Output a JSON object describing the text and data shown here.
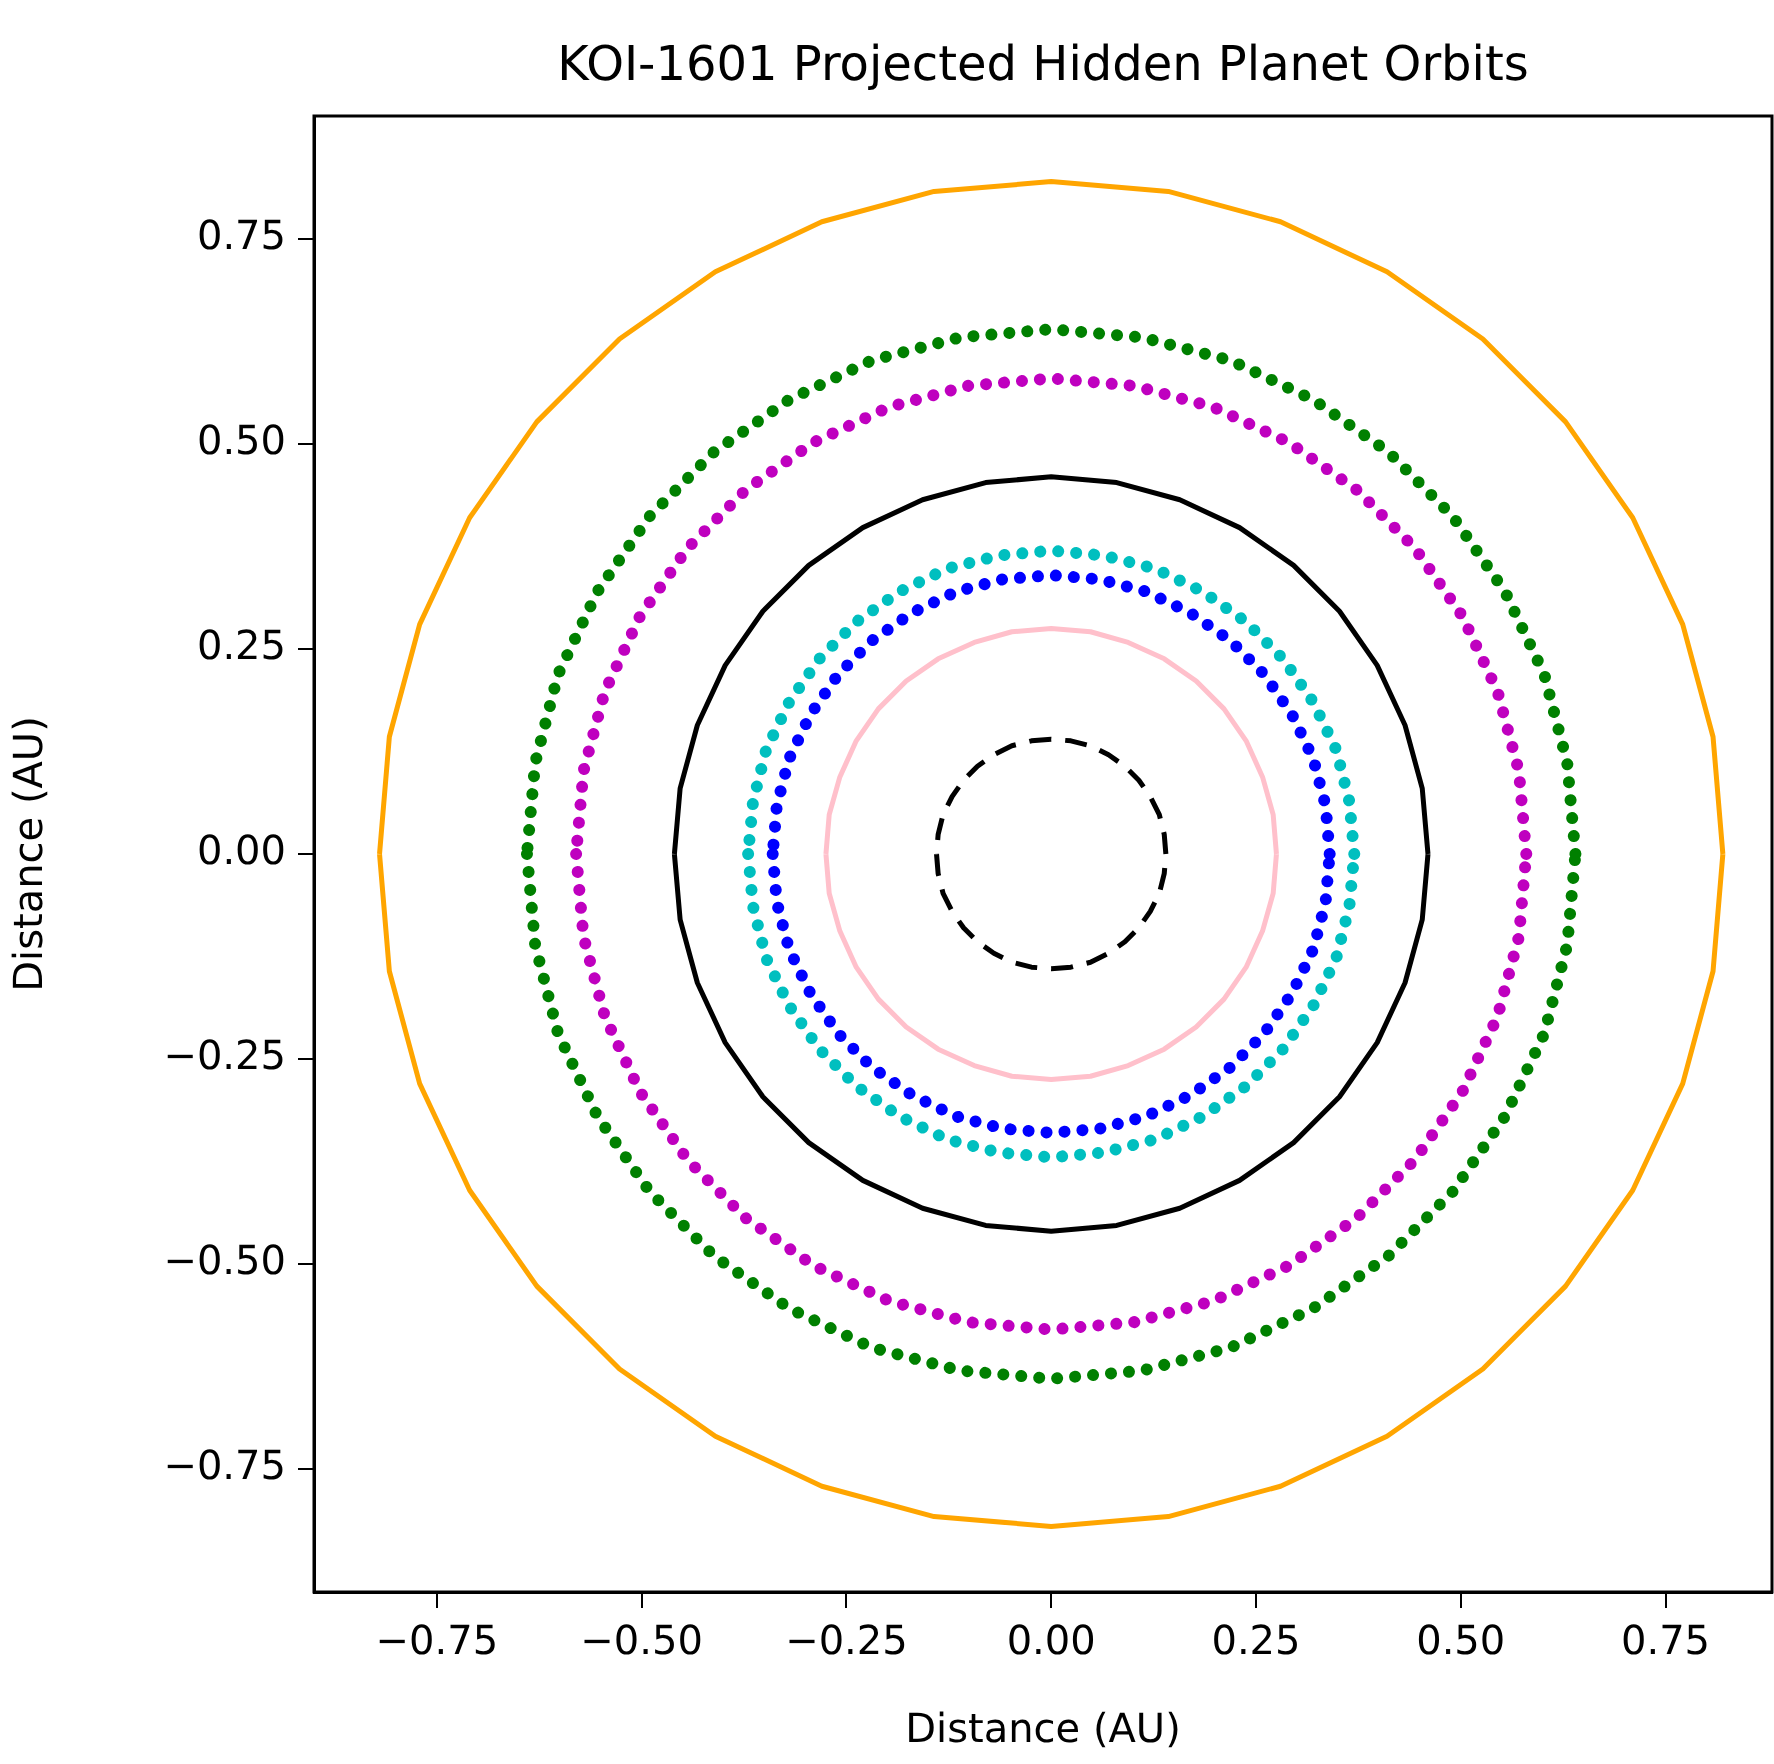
{
  "chart_data": {
    "type": "line",
    "title": "KOI-1601 Projected Hidden Planet Orbits",
    "xlabel": "Distance (AU)",
    "ylabel": "Distance (AU)",
    "xlim": [
      -0.9,
      0.88
    ],
    "ylim": [
      -0.9,
      0.9
    ],
    "xticks": [
      {
        "value": -0.75,
        "label": "−0.75"
      },
      {
        "value": -0.5,
        "label": "−0.50"
      },
      {
        "value": -0.25,
        "label": "−0.25"
      },
      {
        "value": 0,
        "label": "0.00"
      },
      {
        "value": 0.25,
        "label": "0.25"
      },
      {
        "value": 0.5,
        "label": "0.50"
      },
      {
        "value": 0.75,
        "label": "0.75"
      }
    ],
    "yticks": [
      {
        "value": -0.75,
        "label": "−0.75"
      },
      {
        "value": -0.5,
        "label": "−0.50"
      },
      {
        "value": -0.25,
        "label": "−0.25"
      },
      {
        "value": 0,
        "label": "0.00"
      },
      {
        "value": 0.25,
        "label": "0.25"
      },
      {
        "value": 0.5,
        "label": "0.50"
      },
      {
        "value": 0.75,
        "label": "0.75"
      }
    ],
    "grid": false,
    "legend": false,
    "series": [
      {
        "color": "#ffa500",
        "line_style": "solid",
        "x": [
          0.82,
          0.808,
          0.771,
          0.71,
          0.628,
          0.527,
          0.41,
          0.28,
          0.143,
          0,
          -0.143,
          -0.28,
          -0.41,
          -0.527,
          -0.628,
          -0.71,
          -0.771,
          -0.808,
          -0.82,
          null,
          -0.82,
          -0.808,
          -0.771,
          -0.71,
          -0.628,
          -0.527,
          -0.41,
          -0.28,
          -0.143,
          0,
          0.143,
          0.28,
          0.41,
          0.527,
          0.628,
          0.71,
          0.771,
          0.808,
          0.82
        ],
        "values": [
          0,
          0.143,
          0.28,
          0.41,
          0.527,
          0.628,
          0.71,
          0.771,
          0.808,
          0.82,
          0.808,
          0.771,
          0.71,
          0.628,
          0.527,
          0.41,
          0.28,
          0.143,
          0,
          null,
          0,
          -0.143,
          -0.28,
          -0.41,
          -0.527,
          -0.628,
          -0.71,
          -0.771,
          -0.808,
          -0.82,
          -0.808,
          -0.771,
          -0.71,
          -0.628,
          -0.527,
          -0.41,
          -0.28,
          -0.143,
          0
        ]
      },
      {
        "color": "#008000",
        "line_style": "dotted",
        "x": [
          0.64,
          0.63,
          0.602,
          0.554,
          0.49,
          0.412,
          0.32,
          0.219,
          0.111,
          0,
          -0.111,
          -0.219,
          -0.32,
          -0.412,
          -0.49,
          -0.554,
          -0.602,
          -0.63,
          -0.64,
          null,
          -0.64,
          -0.63,
          -0.602,
          -0.554,
          -0.49,
          -0.412,
          -0.32,
          -0.219,
          -0.111,
          0,
          0.111,
          0.219,
          0.32,
          0.412,
          0.49,
          0.554,
          0.602,
          0.63,
          0.64
        ],
        "values": [
          0,
          0.111,
          0.219,
          0.32,
          0.412,
          0.49,
          0.554,
          0.602,
          0.63,
          0.64,
          0.63,
          0.602,
          0.554,
          0.49,
          0.412,
          0.32,
          0.219,
          0.111,
          0,
          null,
          0,
          -0.111,
          -0.219,
          -0.32,
          -0.412,
          -0.49,
          -0.554,
          -0.602,
          -0.63,
          -0.64,
          -0.63,
          -0.602,
          -0.554,
          -0.49,
          -0.412,
          -0.32,
          -0.219,
          -0.111,
          0
        ]
      },
      {
        "color": "#bf00bf",
        "line_style": "dotted",
        "x": [
          0.58,
          0.571,
          0.545,
          0.502,
          0.444,
          0.373,
          0.29,
          0.198,
          0.101,
          0,
          -0.101,
          -0.198,
          -0.29,
          -0.373,
          -0.444,
          -0.502,
          -0.545,
          -0.571,
          -0.58,
          null,
          -0.58,
          -0.571,
          -0.545,
          -0.502,
          -0.444,
          -0.373,
          -0.29,
          -0.198,
          -0.101,
          0,
          0.101,
          0.198,
          0.29,
          0.373,
          0.444,
          0.502,
          0.545,
          0.571,
          0.58
        ],
        "values": [
          0,
          0.101,
          0.198,
          0.29,
          0.373,
          0.444,
          0.502,
          0.545,
          0.571,
          0.58,
          0.571,
          0.545,
          0.502,
          0.444,
          0.373,
          0.29,
          0.198,
          0.101,
          0,
          null,
          0,
          -0.101,
          -0.198,
          -0.29,
          -0.373,
          -0.444,
          -0.502,
          -0.545,
          -0.571,
          -0.58,
          -0.571,
          -0.545,
          -0.502,
          -0.444,
          -0.373,
          -0.29,
          -0.198,
          -0.101,
          0
        ]
      },
      {
        "color": "#000000",
        "line_style": "solid",
        "x": [
          0.46,
          0.453,
          0.432,
          0.398,
          0.352,
          0.296,
          0.23,
          0.157,
          0.08,
          0,
          -0.08,
          -0.157,
          -0.23,
          -0.296,
          -0.352,
          -0.398,
          -0.432,
          -0.453,
          -0.46,
          null,
          -0.46,
          -0.453,
          -0.432,
          -0.398,
          -0.352,
          -0.296,
          -0.23,
          -0.157,
          -0.08,
          0,
          0.08,
          0.157,
          0.23,
          0.296,
          0.352,
          0.398,
          0.432,
          0.453,
          0.46
        ],
        "values": [
          0,
          0.08,
          0.157,
          0.23,
          0.296,
          0.352,
          0.398,
          0.432,
          0.453,
          0.46,
          0.453,
          0.432,
          0.398,
          0.352,
          0.296,
          0.23,
          0.157,
          0.08,
          0,
          null,
          0,
          -0.08,
          -0.157,
          -0.23,
          -0.296,
          -0.352,
          -0.398,
          -0.432,
          -0.453,
          -0.46,
          -0.453,
          -0.432,
          -0.398,
          -0.352,
          -0.296,
          -0.23,
          -0.157,
          -0.08,
          0
        ]
      },
      {
        "color": "#00bfbf",
        "line_style": "dotted",
        "x": [
          0.37,
          0.364,
          0.348,
          0.32,
          0.283,
          0.238,
          0.185,
          0.127,
          0.064,
          0,
          -0.064,
          -0.127,
          -0.185,
          -0.238,
          -0.283,
          -0.32,
          -0.348,
          -0.364,
          -0.37,
          null,
          -0.37,
          -0.364,
          -0.348,
          -0.32,
          -0.283,
          -0.238,
          -0.185,
          -0.127,
          -0.064,
          0,
          0.064,
          0.127,
          0.185,
          0.238,
          0.283,
          0.32,
          0.348,
          0.364,
          0.37
        ],
        "values": [
          0,
          0.064,
          0.127,
          0.185,
          0.238,
          0.283,
          0.32,
          0.348,
          0.364,
          0.37,
          0.364,
          0.348,
          0.32,
          0.283,
          0.238,
          0.185,
          0.127,
          0.064,
          0,
          null,
          0,
          -0.064,
          -0.127,
          -0.185,
          -0.238,
          -0.283,
          -0.32,
          -0.348,
          -0.364,
          -0.37,
          -0.364,
          -0.348,
          -0.32,
          -0.283,
          -0.238,
          -0.185,
          -0.127,
          -0.064,
          0
        ]
      },
      {
        "color": "#0000ff",
        "line_style": "dotted",
        "x": [
          0.34,
          0.335,
          0.32,
          0.294,
          0.26,
          0.219,
          0.17,
          0.116,
          0.059,
          0,
          -0.059,
          -0.116,
          -0.17,
          -0.219,
          -0.26,
          -0.294,
          -0.32,
          -0.335,
          -0.34,
          null,
          -0.34,
          -0.335,
          -0.32,
          -0.294,
          -0.26,
          -0.219,
          -0.17,
          -0.116,
          -0.059,
          0,
          0.059,
          0.116,
          0.17,
          0.219,
          0.26,
          0.294,
          0.32,
          0.335,
          0.34
        ],
        "values": [
          0,
          0.059,
          0.116,
          0.17,
          0.219,
          0.26,
          0.294,
          0.32,
          0.335,
          0.34,
          0.335,
          0.32,
          0.294,
          0.26,
          0.219,
          0.17,
          0.116,
          0.059,
          0,
          null,
          0,
          -0.059,
          -0.116,
          -0.17,
          -0.219,
          -0.26,
          -0.294,
          -0.32,
          -0.335,
          -0.34,
          -0.335,
          -0.32,
          -0.294,
          -0.26,
          -0.219,
          -0.17,
          -0.116,
          -0.059,
          0
        ]
      },
      {
        "color": "#ffc0cb",
        "line_style": "solid",
        "x": [
          0.275,
          0.271,
          0.258,
          0.238,
          0.211,
          0.177,
          0.138,
          0.094,
          0.048,
          0,
          -0.048,
          -0.094,
          -0.138,
          -0.177,
          -0.211,
          -0.238,
          -0.258,
          -0.271,
          -0.275,
          null,
          -0.275,
          -0.271,
          -0.258,
          -0.238,
          -0.211,
          -0.177,
          -0.138,
          -0.094,
          -0.048,
          0,
          0.048,
          0.094,
          0.138,
          0.177,
          0.211,
          0.238,
          0.258,
          0.271,
          0.275
        ],
        "values": [
          0,
          0.048,
          0.094,
          0.138,
          0.177,
          0.211,
          0.238,
          0.258,
          0.271,
          0.275,
          0.271,
          0.258,
          0.238,
          0.211,
          0.177,
          0.138,
          0.094,
          0.048,
          0,
          null,
          0,
          -0.048,
          -0.094,
          -0.138,
          -0.177,
          -0.211,
          -0.238,
          -0.258,
          -0.271,
          -0.275,
          -0.271,
          -0.258,
          -0.238,
          -0.211,
          -0.177,
          -0.138,
          -0.094,
          -0.048,
          0
        ]
      },
      {
        "color": "#000000",
        "line_style": "dashed",
        "x": [
          0.14,
          0.138,
          0.132,
          0.121,
          0.107,
          0.09,
          0.07,
          0.048,
          0.024,
          0,
          -0.024,
          -0.048,
          -0.07,
          -0.09,
          -0.107,
          -0.121,
          -0.132,
          -0.138,
          -0.14,
          null,
          -0.14,
          -0.138,
          -0.132,
          -0.121,
          -0.107,
          -0.09,
          -0.07,
          -0.048,
          -0.024,
          0,
          0.024,
          0.048,
          0.07,
          0.09,
          0.107,
          0.121,
          0.132,
          0.138,
          0.14
        ],
        "values": [
          0,
          0.024,
          0.048,
          0.07,
          0.09,
          0.107,
          0.121,
          0.132,
          0.138,
          0.14,
          0.138,
          0.132,
          0.121,
          0.107,
          0.09,
          0.07,
          0.048,
          0.024,
          0,
          null,
          0,
          -0.024,
          -0.048,
          -0.07,
          -0.09,
          -0.107,
          -0.121,
          -0.132,
          -0.138,
          -0.14,
          -0.138,
          -0.132,
          -0.121,
          -0.107,
          -0.09,
          -0.07,
          -0.048,
          -0.024,
          0
        ]
      }
    ]
  }
}
